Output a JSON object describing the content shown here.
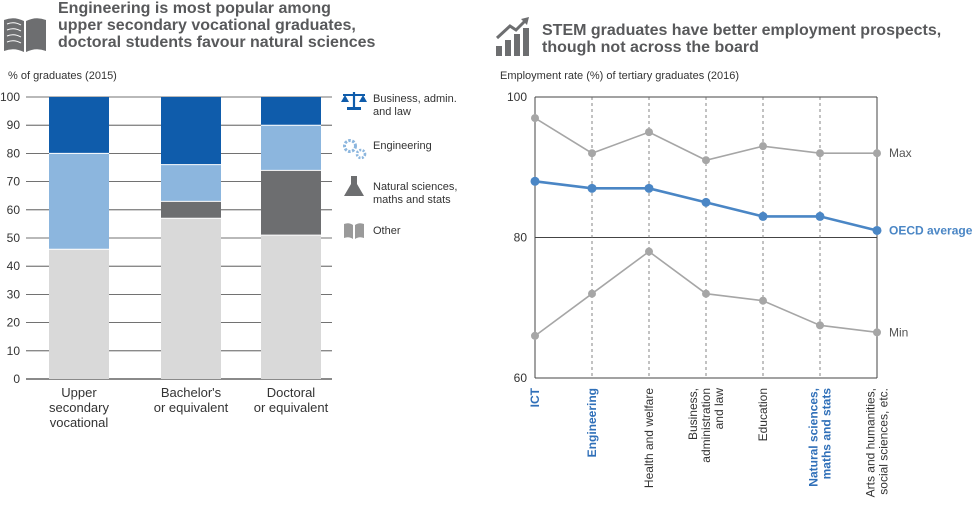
{
  "left_panel": {
    "title_lines": [
      "Engineering is most popular among",
      "upper secondary vocational graduates,",
      "doctoral students favour natural sciences"
    ],
    "icon": "book-icon"
  },
  "right_panel": {
    "title_lines": [
      "STEM graduates have better employment prospects,",
      "though not across the board"
    ],
    "icon": "growth-bar-chart-icon"
  },
  "colors": {
    "business": "#0f5cab",
    "engineering": "#8cb6de",
    "natural": "#6d6e70",
    "other": "#d9d9d9",
    "minmax": "#a6a6a6",
    "oecd": "#4a86c5",
    "stem_label": "#2f6fb8",
    "grid": "#444444"
  },
  "chart_data": [
    {
      "type": "bar",
      "stacked": true,
      "ylabel": "% of graduates (2015)",
      "ylim": [
        0,
        100
      ],
      "yticks": [
        0,
        10,
        20,
        30,
        40,
        50,
        60,
        70,
        80,
        90,
        100
      ],
      "grid": true,
      "categories": [
        [
          "Upper",
          "secondary",
          "vocational"
        ],
        [
          "Bachelor's",
          "or equivalent"
        ],
        [
          "Doctoral",
          "or equivalent"
        ]
      ],
      "series": [
        {
          "key": "other",
          "name": "Other",
          "legend_lines": [
            "Other"
          ],
          "icon": "open-book-icon",
          "values": [
            46,
            57,
            51
          ]
        },
        {
          "key": "natural",
          "name": "Natural sciences, maths and stats",
          "legend_lines": [
            "Natural sciences,",
            "maths and stats"
          ],
          "icon": "flask-icon",
          "values": [
            0,
            6,
            23
          ]
        },
        {
          "key": "engineering",
          "name": "Engineering",
          "legend_lines": [
            "Engineering"
          ],
          "icon": "gears-icon",
          "values": [
            34,
            13,
            16
          ]
        },
        {
          "key": "business",
          "name": "Business, admin. and law",
          "legend_lines": [
            "Business, admin.",
            "and law"
          ],
          "icon": "scales-icon",
          "values": [
            20,
            24,
            10
          ]
        }
      ],
      "legend_position": "right"
    },
    {
      "type": "line",
      "ylabel": "Employment rate (%) of tertiary graduates (2016)",
      "ylim": [
        60,
        100
      ],
      "yticks": [
        60,
        80,
        100
      ],
      "grid": "vertical-dashed",
      "categories": [
        {
          "lines": [
            "ICT"
          ],
          "stem": true
        },
        {
          "lines": [
            "Engineering"
          ],
          "stem": true
        },
        {
          "lines": [
            "Health and welfare"
          ],
          "stem": false
        },
        {
          "lines": [
            "Business,",
            "administration",
            "and law"
          ],
          "stem": false
        },
        {
          "lines": [
            "Education"
          ],
          "stem": false
        },
        {
          "lines": [
            "Natural sciences,",
            "maths and stats"
          ],
          "stem": true
        },
        {
          "lines": [
            "Arts and humanities,",
            "social sciences, etc."
          ],
          "stem": false
        }
      ],
      "series": [
        {
          "key": "max",
          "name": "Max",
          "values": [
            97,
            92,
            95,
            91,
            93,
            92,
            92
          ]
        },
        {
          "key": "oecd",
          "name": "OECD average",
          "values": [
            88,
            87,
            87,
            85,
            83,
            83,
            81
          ]
        },
        {
          "key": "min",
          "name": "Min",
          "values": [
            66,
            72,
            78,
            72,
            71,
            67.5,
            66.5
          ]
        }
      ]
    }
  ]
}
